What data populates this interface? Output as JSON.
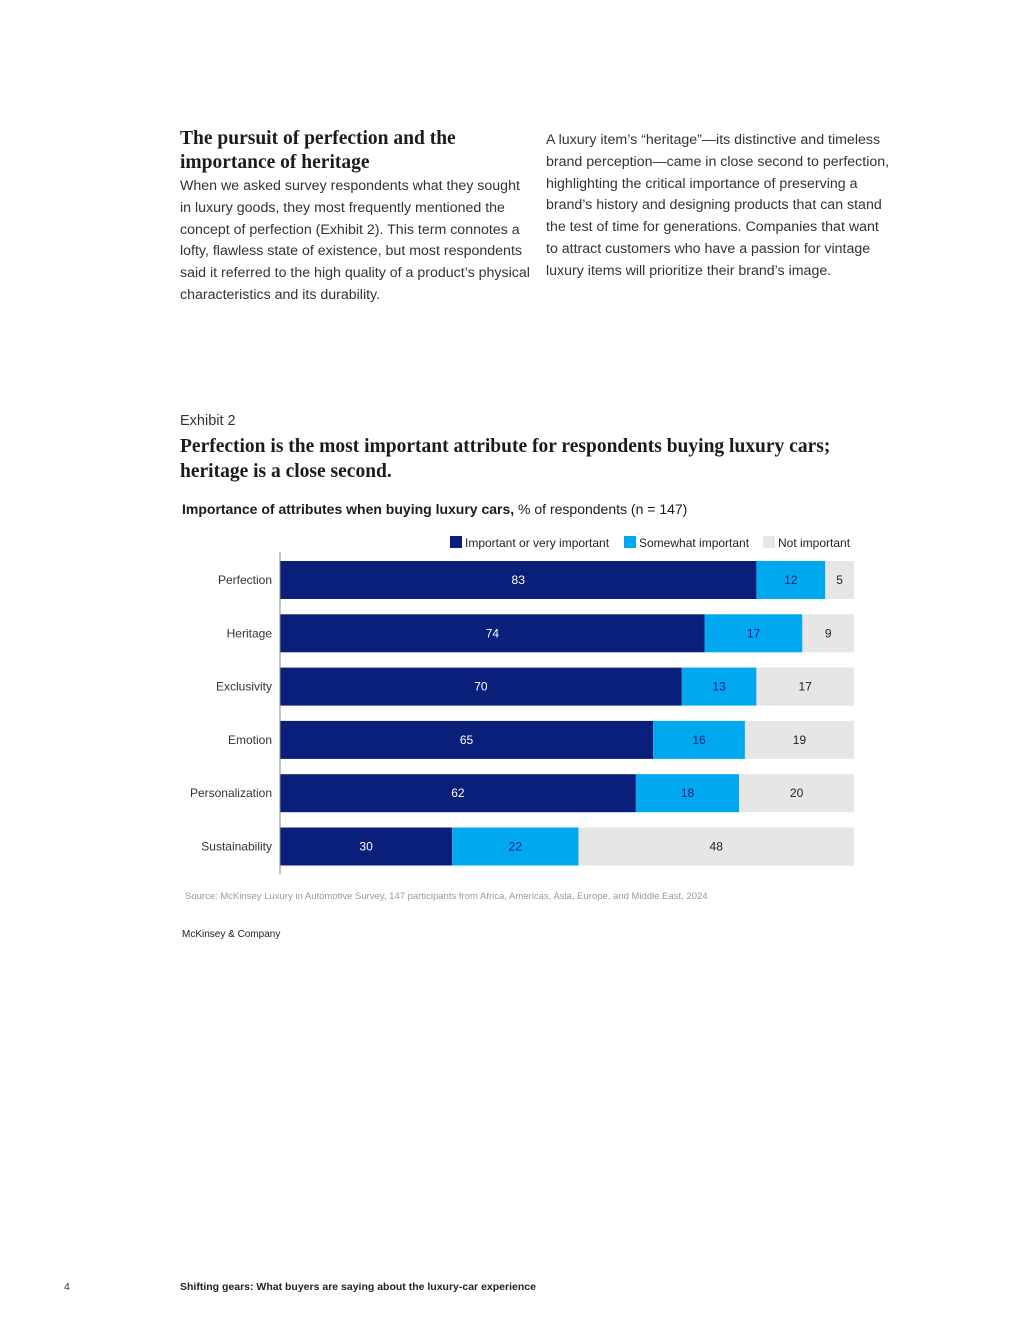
{
  "article": {
    "heading": "The pursuit of perfection and the importance of heritage",
    "left_paragraph": "When we asked survey respondents what they sought in luxury goods, they most frequently mentioned the concept of perfection (Exhibit 2). This term connotes a lofty, flawless state of existence, but most respondents said it referred to the high quality of a product’s physical characteristics and its durability.",
    "right_paragraph": "A luxury item’s “heritage”—its distinctive and timeless brand perception—came in close second to perfection, highlighting the critical importance of preserving a brand’s history and designing products that can stand the test of time for generations. Companies that want to attract customers who have a passion for vintage luxury items will prioritize their brand’s image."
  },
  "exhibit": {
    "label": "Exhibit 2",
    "title": "Perfection is the most important attribute for respondents buying luxury cars; heritage is a close second.",
    "subtitle_bold": "Importance of attributes when buying luxury cars,",
    "subtitle_rest": " % of respondents (n = 147)",
    "source": "Source: McKinsey Luxury in Automotive Survey, 147 participants from Africa, Americas, Asia, Europe, and Middle East, 2024",
    "brand": "McKinsey & Company"
  },
  "colors": {
    "important": "#0a1f7a",
    "somewhat": "#00a8f0",
    "not_important": "#e6e6e6",
    "axis": "#888888"
  },
  "chart_data": {
    "type": "bar",
    "orientation": "horizontal",
    "stacked": true,
    "categories": [
      "Perfection",
      "Heritage",
      "Exclusivity",
      "Emotion",
      "Personalization",
      "Sustainability"
    ],
    "series": [
      {
        "name": "Important or very important",
        "values": [
          83,
          74,
          70,
          65,
          62,
          30
        ]
      },
      {
        "name": "Somewhat important",
        "values": [
          12,
          17,
          13,
          16,
          18,
          22
        ]
      },
      {
        "name": "Not important",
        "values": [
          5,
          9,
          17,
          19,
          20,
          48
        ]
      }
    ],
    "xlim": [
      0,
      100
    ],
    "legend_position": "top-right",
    "grid": false
  },
  "footer": {
    "page_number": "4",
    "title": "Shifting gears: What buyers are saying about the luxury-car experience"
  }
}
